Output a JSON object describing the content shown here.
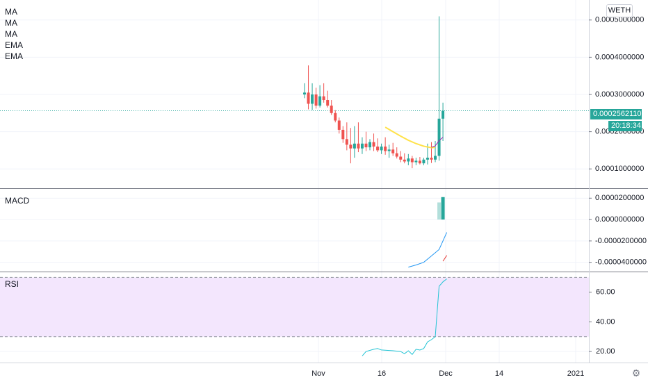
{
  "symbol": "WETH",
  "indicators": {
    "main": [
      "MA",
      "MA",
      "MA",
      "EMA",
      "EMA"
    ],
    "macd_label": "MACD",
    "rsi_label": "RSI"
  },
  "current_price_label": "0.0002562110",
  "countdown_label": "20:18:34",
  "colors": {
    "up": "#26a69a",
    "down": "#ef5350",
    "ma_yellow": "#ffe24a",
    "macd_line": "#2196f3",
    "rsi_line": "#22c4d4",
    "rsi_band": "#f3e6fd",
    "signal_red": "#e53935"
  },
  "chart_data": [
    {
      "type": "candlestick",
      "y_axis_ticks": [
        "0.0005000000",
        "0.0004000000",
        "0.0003000000",
        "0.0002000000",
        "0.0001000000"
      ],
      "ylim": [
        5e-05,
        0.00055
      ],
      "x_ticks": [
        "Nov",
        "16",
        "Dec",
        "14",
        "2021"
      ],
      "last_price": 0.000256211,
      "candles": [
        {
          "i": 0,
          "o": 0.0003,
          "h": 0.00033,
          "l": 0.00029,
          "c": 0.000305
        },
        {
          "i": 1,
          "o": 0.000305,
          "h": 0.000378,
          "l": 0.00026,
          "c": 0.000275
        },
        {
          "i": 2,
          "o": 0.000275,
          "h": 0.00033,
          "l": 0.000258,
          "c": 0.0003
        },
        {
          "i": 3,
          "o": 0.0003,
          "h": 0.000318,
          "l": 0.000262,
          "c": 0.00027
        },
        {
          "i": 4,
          "o": 0.00027,
          "h": 0.000325,
          "l": 0.000265,
          "c": 0.000295
        },
        {
          "i": 5,
          "o": 0.000295,
          "h": 0.00033,
          "l": 0.000278,
          "c": 0.000285
        },
        {
          "i": 6,
          "o": 0.000285,
          "h": 0.00031,
          "l": 0.000265,
          "c": 0.00027
        },
        {
          "i": 7,
          "o": 0.00027,
          "h": 0.000285,
          "l": 0.000245,
          "c": 0.00025
        },
        {
          "i": 8,
          "o": 0.00025,
          "h": 0.000258,
          "l": 0.000225,
          "c": 0.00023
        },
        {
          "i": 9,
          "o": 0.00023,
          "h": 0.000238,
          "l": 0.000195,
          "c": 0.000205
        },
        {
          "i": 10,
          "o": 0.000205,
          "h": 0.000215,
          "l": 0.00017,
          "c": 0.00018
        },
        {
          "i": 11,
          "o": 0.00018,
          "h": 0.000225,
          "l": 0.00015,
          "c": 0.000165
        },
        {
          "i": 12,
          "o": 0.000165,
          "h": 0.00021,
          "l": 0.000115,
          "c": 0.000155
        },
        {
          "i": 13,
          "o": 0.000155,
          "h": 0.000215,
          "l": 0.00013,
          "c": 0.000168
        },
        {
          "i": 14,
          "o": 0.000168,
          "h": 0.000225,
          "l": 0.000145,
          "c": 0.000155
        },
        {
          "i": 15,
          "o": 0.000155,
          "h": 0.000185,
          "l": 0.00014,
          "c": 0.000168
        },
        {
          "i": 16,
          "o": 0.000168,
          "h": 0.0002,
          "l": 0.000148,
          "c": 0.000158
        },
        {
          "i": 17,
          "o": 0.000158,
          "h": 0.00018,
          "l": 0.00015,
          "c": 0.000172
        },
        {
          "i": 18,
          "o": 0.000172,
          "h": 0.000195,
          "l": 0.000148,
          "c": 0.00016
        },
        {
          "i": 19,
          "o": 0.00016,
          "h": 0.000182,
          "l": 0.000145,
          "c": 0.00015
        },
        {
          "i": 20,
          "o": 0.00015,
          "h": 0.000168,
          "l": 0.00014,
          "c": 0.00016
        },
        {
          "i": 21,
          "o": 0.00016,
          "h": 0.000185,
          "l": 0.000138,
          "c": 0.000148
        },
        {
          "i": 22,
          "o": 0.000148,
          "h": 0.000165,
          "l": 0.00013,
          "c": 0.000152
        },
        {
          "i": 23,
          "o": 0.000152,
          "h": 0.00017,
          "l": 0.000135,
          "c": 0.000142
        },
        {
          "i": 24,
          "o": 0.000142,
          "h": 0.000158,
          "l": 0.000128,
          "c": 0.000133
        },
        {
          "i": 25,
          "o": 0.000133,
          "h": 0.000148,
          "l": 0.000118,
          "c": 0.000125
        },
        {
          "i": 26,
          "o": 0.000125,
          "h": 0.000142,
          "l": 0.000115,
          "c": 0.00012
        },
        {
          "i": 27,
          "o": 0.00012,
          "h": 0.00014,
          "l": 0.00011,
          "c": 0.000128
        },
        {
          "i": 28,
          "o": 0.000128,
          "h": 0.000135,
          "l": 0.000102,
          "c": 0.000118
        },
        {
          "i": 29,
          "o": 0.000118,
          "h": 0.00013,
          "l": 0.00011,
          "c": 0.000122
        },
        {
          "i": 30,
          "o": 0.000122,
          "h": 0.000132,
          "l": 0.000112,
          "c": 0.000115
        },
        {
          "i": 31,
          "o": 0.000115,
          "h": 0.00013,
          "l": 0.00011,
          "c": 0.000125
        },
        {
          "i": 32,
          "o": 0.000125,
          "h": 0.000168,
          "l": 0.000112,
          "c": 0.00013
        },
        {
          "i": 33,
          "o": 0.00013,
          "h": 0.000172,
          "l": 0.000116,
          "c": 0.000125
        },
        {
          "i": 34,
          "o": 0.000125,
          "h": 0.000175,
          "l": 0.000118,
          "c": 0.000135
        },
        {
          "i": 35,
          "o": 0.000135,
          "h": 0.00051,
          "l": 0.000122,
          "c": 0.000235
        },
        {
          "i": 36,
          "o": 0.000235,
          "h": 0.000278,
          "l": 0.000175,
          "c": 0.000256
        }
      ],
      "ma_yellow": [
        {
          "i": 21,
          "v": 0.000212
        },
        {
          "i": 23,
          "v": 0.0002
        },
        {
          "i": 25,
          "v": 0.000188
        },
        {
          "i": 27,
          "v": 0.000177
        },
        {
          "i": 29,
          "v": 0.000168
        },
        {
          "i": 31,
          "v": 0.000161
        },
        {
          "i": 33,
          "v": 0.000157
        },
        {
          "i": 34,
          "v": 0.000158
        }
      ],
      "ema_short": [
        {
          "i": 33,
          "v": 0.000158
        },
        {
          "i": 34,
          "v": 0.000162
        },
        {
          "i": 35,
          "v": 0.000176
        },
        {
          "i": 36,
          "v": 0.000185
        }
      ]
    },
    {
      "type": "bar",
      "title": "MACD",
      "y_axis_ticks": [
        "0.0000200000",
        "0.0000000000",
        "-0.0000200000",
        "-0.0000400000"
      ],
      "ylim": [
        -4.8e-05,
        2.8e-05
      ],
      "histogram": [
        {
          "i": 35,
          "v": 1.6e-05
        },
        {
          "i": 36,
          "v": 2.1e-05
        }
      ],
      "macd_line": [
        {
          "i": 27,
          "v": -4.45e-05
        },
        {
          "i": 29,
          "v": -4.25e-05
        },
        {
          "i": 31,
          "v": -4e-05
        },
        {
          "i": 33,
          "v": -3.4e-05
        },
        {
          "i": 35,
          "v": -2.8e-05
        },
        {
          "i": 37,
          "v": -1.2e-05
        }
      ],
      "signal_line": [
        {
          "i": 36,
          "v": -3.9e-05
        },
        {
          "i": 37,
          "v": -3.35e-05
        }
      ]
    },
    {
      "type": "line",
      "title": "RSI",
      "y_axis_ticks": [
        "60.00",
        "40.00",
        "20.00"
      ],
      "ylim": [
        13,
        73
      ],
      "band": [
        30,
        70
      ],
      "values": [
        {
          "i": 15,
          "v": 17
        },
        {
          "i": 16,
          "v": 20
        },
        {
          "i": 18,
          "v": 21.5
        },
        {
          "i": 19,
          "v": 22
        },
        {
          "i": 20,
          "v": 21
        },
        {
          "i": 23,
          "v": 20.5
        },
        {
          "i": 25,
          "v": 20
        },
        {
          "i": 26,
          "v": 18.5
        },
        {
          "i": 27,
          "v": 20.5
        },
        {
          "i": 28,
          "v": 18
        },
        {
          "i": 29,
          "v": 21.5
        },
        {
          "i": 30,
          "v": 21
        },
        {
          "i": 31,
          "v": 22
        },
        {
          "i": 32,
          "v": 26.5
        },
        {
          "i": 33,
          "v": 28
        },
        {
          "i": 34,
          "v": 30
        },
        {
          "i": 35,
          "v": 64
        },
        {
          "i": 36,
          "v": 67
        },
        {
          "i": 37,
          "v": 69
        }
      ]
    }
  ]
}
